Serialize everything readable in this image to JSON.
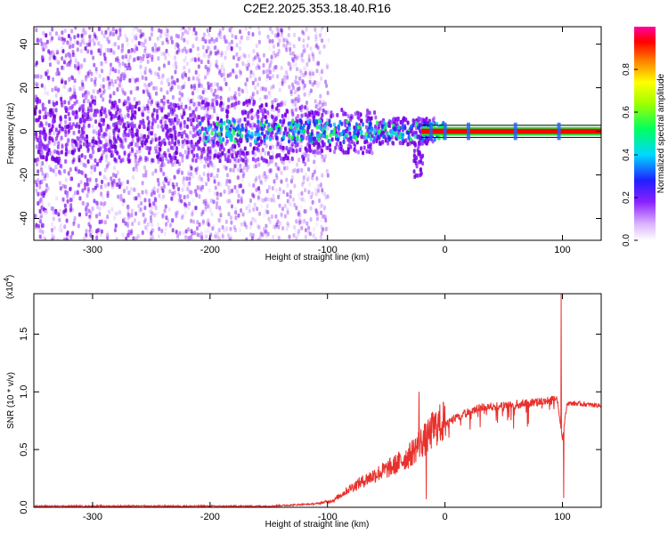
{
  "figure_title": "C2E2.2025.353.18.40.R16",
  "colors": {
    "accent_line": "#e8302c",
    "spectrum_band": "#ff0000",
    "dot_primary": "#7a00e6",
    "frame": "#000000"
  },
  "chart_data": [
    {
      "type": "heatmap",
      "title": "",
      "xlabel": "Height of straight line (km)",
      "ylabel": "Frequency (Hz)",
      "xlim": [
        -350,
        133
      ],
      "ylim": [
        -50,
        48
      ],
      "xticks": [
        -300,
        -200,
        -100,
        0,
        100
      ],
      "yticks": [
        -40,
        -20,
        0,
        20,
        40
      ],
      "grid": false,
      "description_of_content": "",
      "colorbar": {
        "label": "Normalized spectral amplitude",
        "range": [
          0.0,
          1.0
        ],
        "ticks": [
          0.0,
          0.2,
          0.4,
          0.6,
          0.8
        ],
        "tick_labels": [
          "0.0",
          "0.2",
          "0.4",
          "0.6",
          "0.8"
        ],
        "colormap": [
          "#ffffff",
          "#a040ff",
          "#2020ff",
          "#00e0ff",
          "#00ff40",
          "#ffff00",
          "#ff8000",
          "#ff0000",
          "#ff00a0"
        ]
      },
      "band": {
        "x_start": -20,
        "x_end": 133,
        "frequency": 0,
        "half_width_hz": 1.2
      }
    },
    {
      "type": "line",
      "title": "",
      "xlabel": "Height of straight line (km)",
      "ylabel": "SNR (10 * v/v)",
      "y_multiplier": "(x10",
      "y_multiplier_exp": "4",
      "xlim": [
        -350,
        133
      ],
      "ylim": [
        0,
        1.85
      ],
      "xticks": [
        -300,
        -200,
        -100,
        0,
        100
      ],
      "yticks": [
        0.0,
        0.5,
        1.0,
        1.5
      ],
      "ytick_labels": [
        "0.0",
        "0.5",
        "1.0",
        "1.5"
      ],
      "grid": false,
      "envelope": {
        "x": [
          -350,
          -150,
          -110,
          -95,
          -80,
          -60,
          -45,
          -30,
          -22,
          -15,
          -10,
          0,
          10,
          30,
          50,
          80,
          95,
          100,
          104,
          110,
          133
        ],
        "y": [
          0.01,
          0.01,
          0.03,
          0.06,
          0.17,
          0.28,
          0.35,
          0.45,
          0.55,
          0.6,
          0.68,
          0.75,
          0.82,
          0.9,
          0.92,
          0.95,
          0.97,
          0.6,
          0.9,
          0.9,
          0.88
        ]
      },
      "peaks": [
        {
          "x": -22,
          "y": 1.0
        },
        {
          "x": -16,
          "y": 0.07
        },
        {
          "x": 99,
          "y": 1.85
        },
        {
          "x": 101,
          "y": 0.08
        }
      ]
    }
  ]
}
